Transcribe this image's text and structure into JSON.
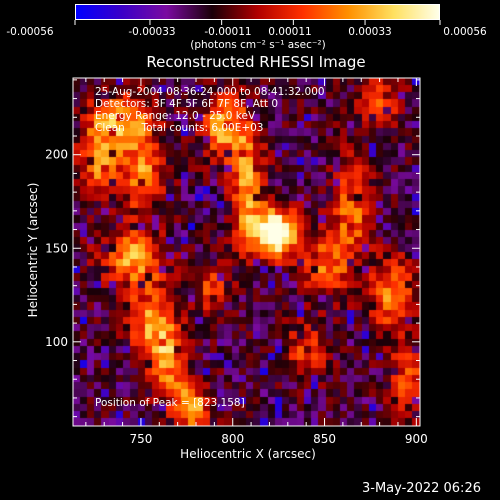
{
  "colorbar": {
    "tick_labels": [
      "-0.00056",
      "-0.00033",
      "-0.00011",
      "0.00011",
      "0.00033",
      "0.00056"
    ],
    "min": -0.00056,
    "max": 0.00056,
    "unit_label": "(photons cm⁻² s⁻¹ asec⁻²)",
    "colormap": [
      "#0000ff",
      "#3a00c8",
      "#7a0aa0",
      "#1a0008",
      "#b00000",
      "#ff3000",
      "#ff9000",
      "#ffe060",
      "#ffffe8"
    ]
  },
  "plot": {
    "title": "Reconstructed RHESSI Image",
    "annotations": [
      "25-Aug-2004 08:36:24.000 to 08:41:32.000",
      "Detectors: 3F 4F 5F 6F 7F 8F, Att 0",
      "Energy Range: 12.0 - 25.0 keV",
      "Clean     Total counts: 6.00E+03"
    ],
    "peak_label": "Position of Peak = [823,158]",
    "timestamp": "3-May-2022 06:26"
  },
  "chart_data": {
    "type": "heatmap",
    "title": "Reconstructed RHESSI Image",
    "xlabel": "Heliocentric X (arcsec)",
    "ylabel": "Heliocentric Y (arcsec)",
    "xlim": [
      713,
      902
    ],
    "ylim": [
      55,
      241
    ],
    "x_ticks": [
      750,
      800,
      850,
      900
    ],
    "y_ticks": [
      100,
      150,
      200
    ],
    "x_tick_labels": [
      "750",
      "800",
      "850",
      "900"
    ],
    "y_tick_labels": [
      "100",
      "150",
      "200"
    ],
    "peak": {
      "x": 823,
      "y": 158
    },
    "features": [
      {
        "x": 823,
        "y": 158,
        "level": 1.0,
        "sx": 9,
        "sy": 9
      },
      {
        "x": 808,
        "y": 185,
        "level": 0.55,
        "sx": 6,
        "sy": 22
      },
      {
        "x": 795,
        "y": 215,
        "level": 0.6,
        "sx": 8,
        "sy": 12
      },
      {
        "x": 738,
        "y": 218,
        "level": 0.55,
        "sx": 12,
        "sy": 10
      },
      {
        "x": 728,
        "y": 195,
        "level": 0.5,
        "sx": 8,
        "sy": 12
      },
      {
        "x": 752,
        "y": 190,
        "level": 0.5,
        "sx": 8,
        "sy": 16
      },
      {
        "x": 745,
        "y": 145,
        "level": 0.55,
        "sx": 12,
        "sy": 10
      },
      {
        "x": 755,
        "y": 112,
        "level": 0.5,
        "sx": 8,
        "sy": 14
      },
      {
        "x": 765,
        "y": 90,
        "level": 0.55,
        "sx": 7,
        "sy": 14
      },
      {
        "x": 778,
        "y": 65,
        "level": 0.55,
        "sx": 7,
        "sy": 9
      },
      {
        "x": 850,
        "y": 140,
        "level": 0.45,
        "sx": 9,
        "sy": 12
      },
      {
        "x": 865,
        "y": 170,
        "level": 0.45,
        "sx": 7,
        "sy": 20
      },
      {
        "x": 887,
        "y": 125,
        "level": 0.5,
        "sx": 8,
        "sy": 14
      },
      {
        "x": 895,
        "y": 80,
        "level": 0.45,
        "sx": 6,
        "sy": 12
      },
      {
        "x": 880,
        "y": 228,
        "level": 0.4,
        "sx": 8,
        "sy": 9
      },
      {
        "x": 840,
        "y": 95,
        "level": 0.35,
        "sx": 8,
        "sy": 10
      },
      {
        "x": 790,
        "y": 128,
        "level": 0.35,
        "sx": 7,
        "sy": 9
      }
    ]
  }
}
